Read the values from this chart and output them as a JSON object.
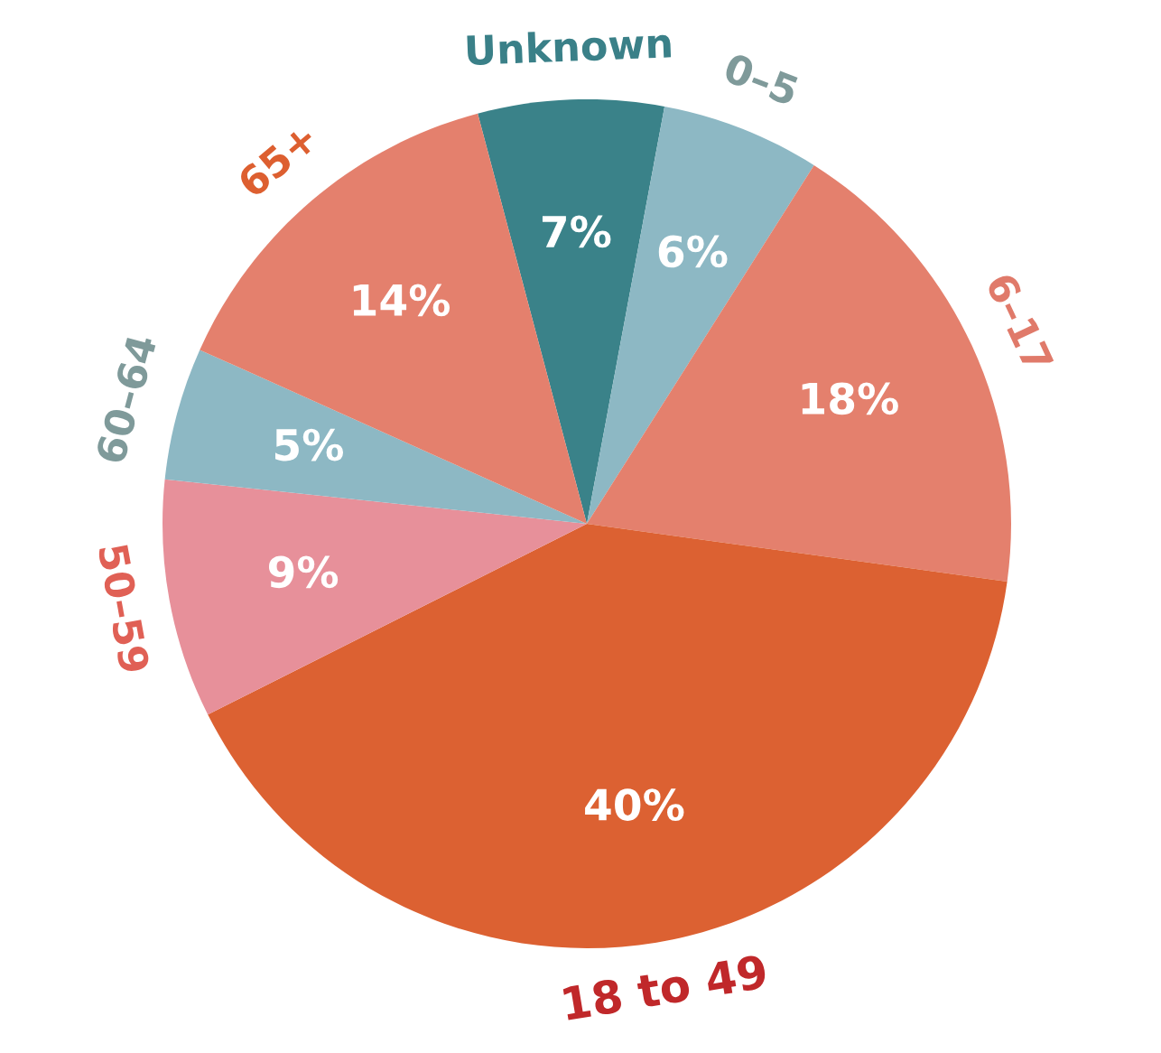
{
  "chart_data": {
    "type": "pie",
    "categories": [
      "Unknown",
      "0–5",
      "6–17",
      "18 to 49",
      "50–59",
      "60–64",
      "65+"
    ],
    "values": [
      7,
      6,
      18,
      40,
      9,
      5,
      14
    ],
    "colors": [
      "#3a8289",
      "#8db8c4",
      "#e4806d",
      "#dc6132",
      "#e7909a",
      "#8db8c4",
      "#e4806d"
    ],
    "value_labels": [
      "7%",
      "6%",
      "18%",
      "40%",
      "9%",
      "5%",
      "14%"
    ],
    "legend": false
  }
}
